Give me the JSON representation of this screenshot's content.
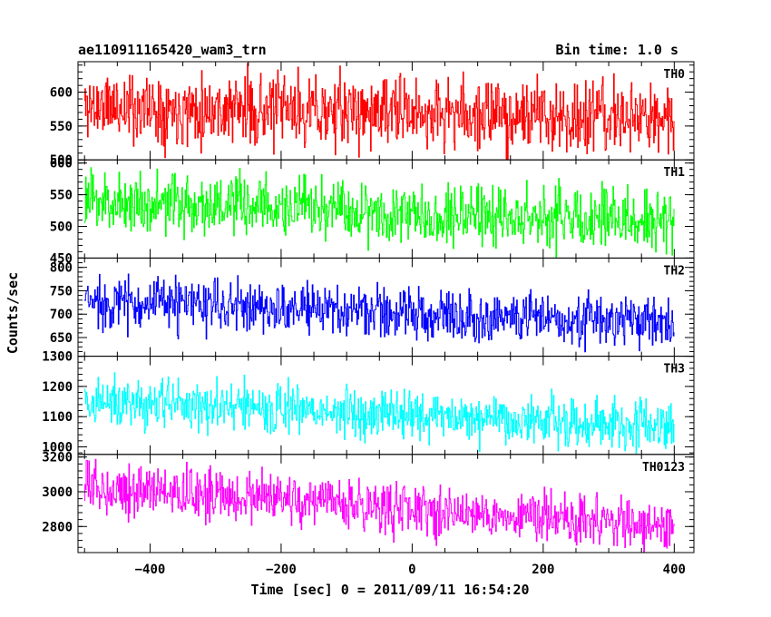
{
  "header": {
    "title": "ae110911165420_wam3_trn",
    "bin_time": "Bin time: 1.0 s"
  },
  "chart_data": {
    "type": "line",
    "title": "ae110911165420_wam3_trn",
    "bin_time": "Bin time: 1.0 s",
    "xlabel": "Time [sec] 0 = 2011/09/11 16:54:20",
    "ylabel": "Counts/sec",
    "xlim": [
      -510,
      430
    ],
    "x_ticks": [
      -400,
      -200,
      0,
      200,
      400
    ],
    "x_range": [
      -500,
      400
    ],
    "x_step": 1,
    "grid": false,
    "panels": [
      {
        "name": "TH0",
        "color": "#ff0000",
        "ylim": [
          500,
          645
        ],
        "y_ticks": [
          500,
          550,
          600
        ],
        "mean_start": 580,
        "mean_end": 560,
        "spread": 26,
        "seed": 11
      },
      {
        "name": "TH1",
        "color": "#00ff00",
        "ylim": [
          450,
          605
        ],
        "y_ticks": [
          450,
          500,
          550,
          600
        ],
        "mean_start": 540,
        "mean_end": 508,
        "spread": 24,
        "seed": 23
      },
      {
        "name": "TH2",
        "color": "#0000ff",
        "ylim": [
          610,
          820
        ],
        "y_ticks": [
          650,
          700,
          750,
          800
        ],
        "mean_start": 728,
        "mean_end": 682,
        "spread": 28,
        "seed": 37
      },
      {
        "name": "TH3",
        "color": "#00ffff",
        "ylim": [
          975,
          1300
        ],
        "y_ticks": [
          1000,
          1100,
          1200,
          1300
        ],
        "mean_start": 1150,
        "mean_end": 1070,
        "spread": 42,
        "seed": 41
      },
      {
        "name": "TH0123",
        "color": "#ff00ff",
        "ylim": [
          2650,
          3215
        ],
        "y_ticks": [
          2800,
          3000,
          3200
        ],
        "mean_start": 3030,
        "mean_end": 2800,
        "spread": 72,
        "seed": 53
      }
    ]
  }
}
